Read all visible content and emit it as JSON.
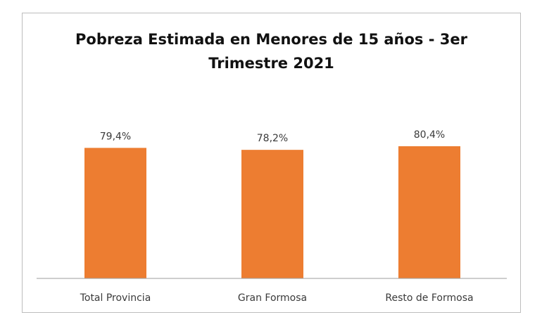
{
  "chart_data": {
    "type": "bar",
    "title_lines": [
      "Pobreza Estimada en Menores de 15 años - 3er",
      "Trimestre 2021"
    ],
    "categories": [
      "Total Provincia",
      "Gran Formosa",
      "Resto de Formosa"
    ],
    "values": [
      79.4,
      78.2,
      80.4
    ],
    "data_labels": [
      "79,4%",
      "78,2%",
      "80,4%"
    ],
    "bar_color": "#ed7d31",
    "grid": false,
    "legend": "none",
    "xlabel": "",
    "ylabel": ""
  }
}
